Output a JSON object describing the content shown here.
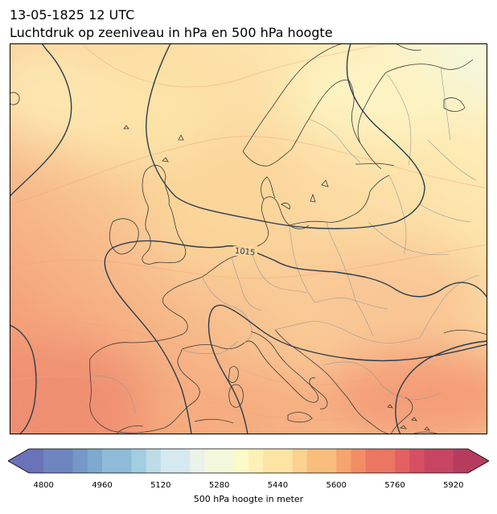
{
  "title": {
    "line1": "13-05-1825 12 UTC",
    "line2": "Luchtdruk op zeeniveau in hPa en 500 hPa hoogte"
  },
  "map": {
    "region": "Europe",
    "isobar_label": "1015",
    "isobar_color": "#2c3e50",
    "coastline_color": "#3a3a3a",
    "border_color": "#9a9a9a"
  },
  "colorbar": {
    "label": "500 hPa hoogte in meter",
    "ticks": [
      "4800",
      "4960",
      "5120",
      "5280",
      "5440",
      "5600",
      "5760",
      "5920"
    ],
    "min": 4760,
    "max": 5960,
    "step": 40,
    "colormap": "Spectral_r",
    "extend": "both"
  }
}
